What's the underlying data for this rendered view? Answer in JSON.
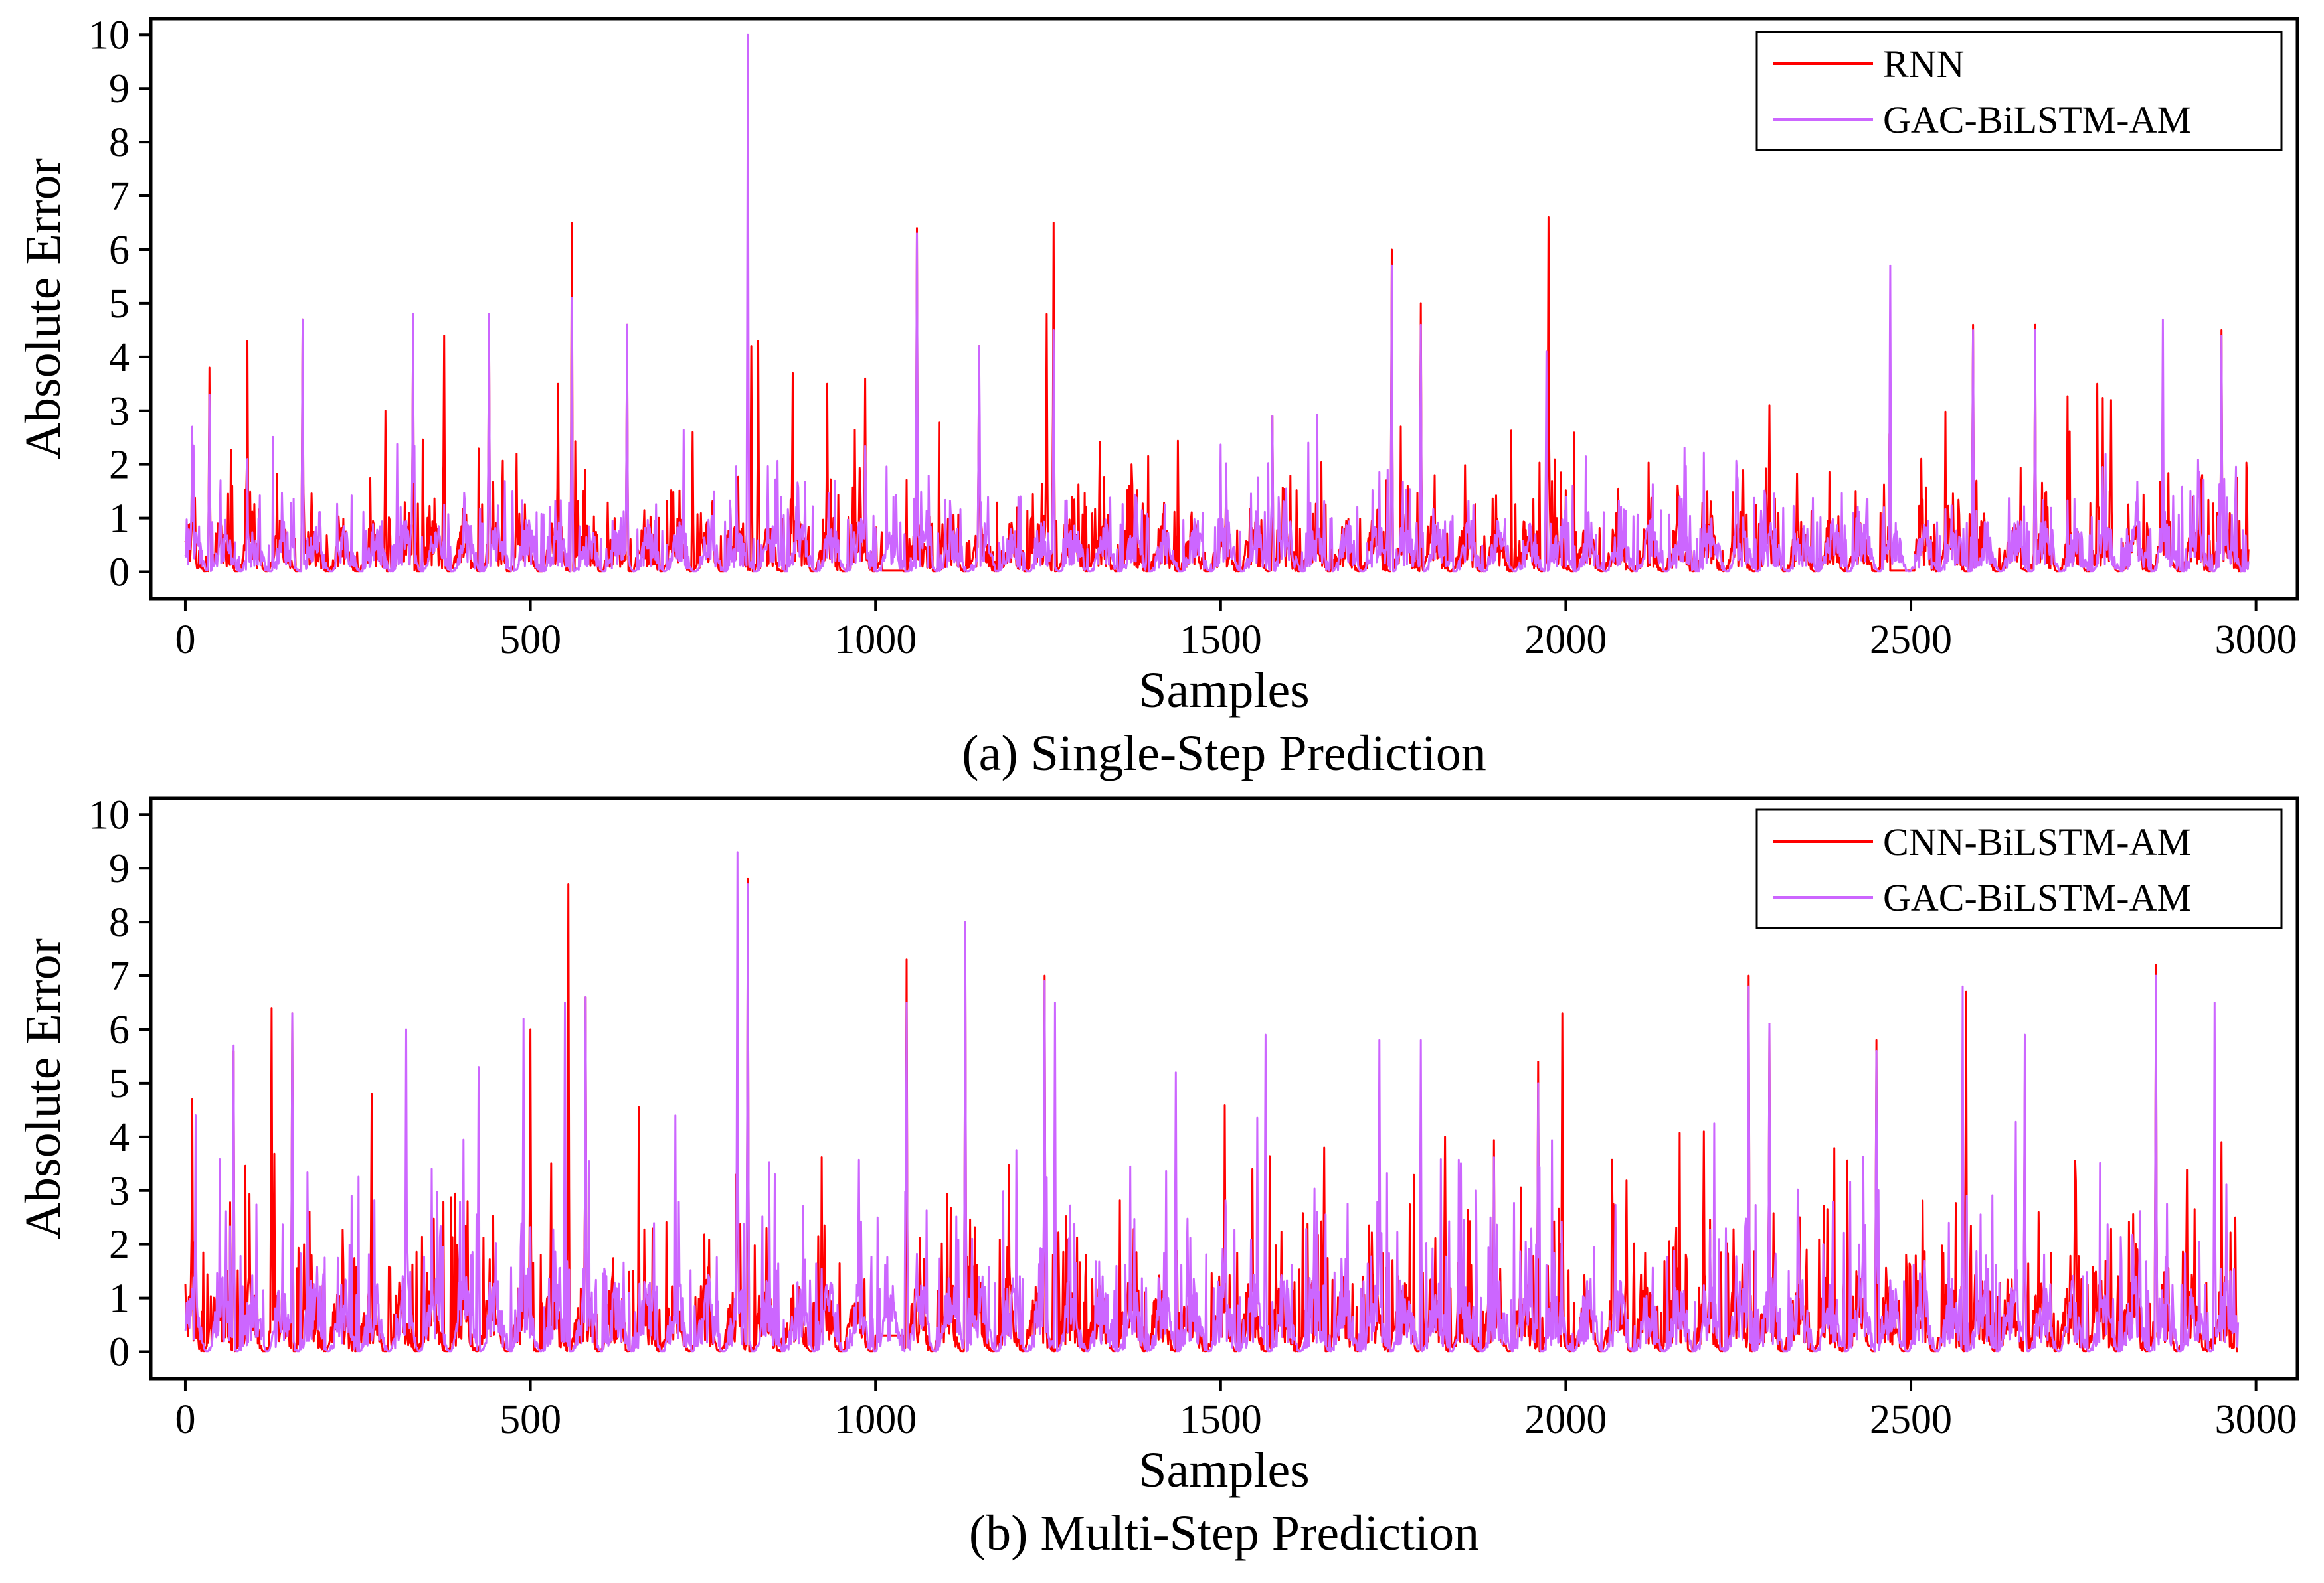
{
  "chart_data": [
    {
      "type": "line",
      "caption": "(a) Single-Step Prediction",
      "xlabel": "Samples",
      "ylabel": "Absolute Error",
      "xlim": [
        -50,
        3060
      ],
      "ylim": [
        -0.5,
        10.3
      ],
      "xticks": [
        0,
        500,
        1000,
        1500,
        2000,
        2500,
        3000
      ],
      "yticks": [
        0,
        1,
        2,
        3,
        4,
        5,
        6,
        7,
        8,
        9,
        10
      ],
      "grid": false,
      "legend_position": "top-right",
      "n_samples": 2990,
      "series": [
        {
          "name": "RNN",
          "color": "#ff0000",
          "baseline": 0.7,
          "noise_amp": 1.3,
          "peaks": [
            [
              10,
              2.6
            ],
            [
              35,
              3.8
            ],
            [
              90,
              4.3
            ],
            [
              170,
              4.7
            ],
            [
              290,
              3.0
            ],
            [
              330,
              4.8
            ],
            [
              375,
              4.4
            ],
            [
              440,
              4.8
            ],
            [
              480,
              2.2
            ],
            [
              540,
              3.5
            ],
            [
              560,
              6.5
            ],
            [
              640,
              4.6
            ],
            [
              735,
              2.6
            ],
            [
              820,
              4.2
            ],
            [
              830,
              4.3
            ],
            [
              880,
              3.7
            ],
            [
              930,
              3.5
            ],
            [
              985,
              3.6
            ],
            [
              1060,
              6.4
            ],
            [
              1150,
              4.2
            ],
            [
              1248,
              4.8
            ],
            [
              1258,
              6.5
            ],
            [
              1575,
              2.9
            ],
            [
              1748,
              6.0
            ],
            [
              1790,
              5.0
            ],
            [
              1975,
              6.6
            ],
            [
              2295,
              3.1
            ],
            [
              2470,
              5.7
            ],
            [
              2590,
              4.6
            ],
            [
              2680,
              4.6
            ],
            [
              2770,
              3.5
            ],
            [
              2790,
              3.2
            ],
            [
              2950,
              4.5
            ]
          ],
          "flat_segments": [
            [
              1010,
              1040,
              0.02
            ],
            [
              2470,
              2505,
              0.02
            ]
          ]
        },
        {
          "name": "GAC-BiLSTM-AM",
          "color": "#cc66ff",
          "baseline": 0.7,
          "noise_amp": 1.2,
          "peaks": [
            [
              10,
              2.7
            ],
            [
              35,
              3.3
            ],
            [
              90,
              2.1
            ],
            [
              170,
              4.7
            ],
            [
              330,
              4.8
            ],
            [
              440,
              4.8
            ],
            [
              560,
              5.1
            ],
            [
              640,
              4.6
            ],
            [
              815,
              10.0
            ],
            [
              1060,
              6.3
            ],
            [
              1150,
              4.2
            ],
            [
              1258,
              4.5
            ],
            [
              1575,
              2.9
            ],
            [
              1748,
              5.7
            ],
            [
              1790,
              4.6
            ],
            [
              1972,
              4.1
            ],
            [
              2470,
              5.7
            ],
            [
              2590,
              4.5
            ],
            [
              2680,
              4.5
            ],
            [
              2865,
              4.7
            ],
            [
              2950,
              4.4
            ]
          ],
          "flat_segments": []
        }
      ]
    },
    {
      "type": "line",
      "caption": "(b) Multi-Step Prediction",
      "xlabel": "Samples",
      "ylabel": "Absolute Error",
      "xlim": [
        -50,
        3060
      ],
      "ylim": [
        -0.5,
        10.3
      ],
      "xticks": [
        0,
        500,
        1000,
        1500,
        2000,
        2500,
        3000
      ],
      "yticks": [
        0,
        1,
        2,
        3,
        4,
        5,
        6,
        7,
        8,
        9,
        10
      ],
      "grid": false,
      "legend_position": "top-right",
      "n_samples": 2975,
      "series": [
        {
          "name": "CNN-BiLSTM-AM",
          "color": "#ff0000",
          "baseline": 1.0,
          "noise_amp": 1.9,
          "peaks": [
            [
              10,
              4.7
            ],
            [
              70,
              5.6
            ],
            [
              125,
              6.4
            ],
            [
              155,
              6.3
            ],
            [
              270,
              4.8
            ],
            [
              500,
              6.0
            ],
            [
              555,
              8.7
            ],
            [
              580,
              6.6
            ],
            [
              800,
              5.6
            ],
            [
              815,
              8.8
            ],
            [
              1045,
              7.3
            ],
            [
              1130,
              7.9
            ],
            [
              1245,
              7.0
            ],
            [
              1650,
              3.8
            ],
            [
              1825,
              4.0
            ],
            [
              1960,
              5.4
            ],
            [
              1995,
              6.3
            ],
            [
              2200,
              4.1
            ],
            [
              2265,
              7.0
            ],
            [
              2295,
              6.1
            ],
            [
              2450,
              5.8
            ],
            [
              2580,
              6.7
            ],
            [
              2665,
              5.1
            ],
            [
              2855,
              7.2
            ],
            [
              2950,
              3.9
            ],
            [
              2970,
              2.5
            ]
          ],
          "flat_segments": [
            [
              1000,
              1040,
              0.3
            ]
          ]
        },
        {
          "name": "GAC-BiLSTM-AM",
          "color": "#cc66ff",
          "baseline": 1.0,
          "noise_amp": 1.8,
          "peaks": [
            [
              15,
              4.4
            ],
            [
              70,
              5.7
            ],
            [
              155,
              6.3
            ],
            [
              320,
              6.0
            ],
            [
              425,
              5.3
            ],
            [
              490,
              6.2
            ],
            [
              550,
              6.5
            ],
            [
              580,
              6.6
            ],
            [
              800,
              9.3
            ],
            [
              815,
              8.7
            ],
            [
              1045,
              6.5
            ],
            [
              1130,
              8.0
            ],
            [
              1245,
              6.9
            ],
            [
              1260,
              6.5
            ],
            [
              1435,
              5.2
            ],
            [
              1565,
              5.9
            ],
            [
              1730,
              5.8
            ],
            [
              1790,
              5.8
            ],
            [
              1960,
              5.0
            ],
            [
              2265,
              6.8
            ],
            [
              2295,
              6.1
            ],
            [
              2450,
              5.6
            ],
            [
              2575,
              6.8
            ],
            [
              2665,
              5.9
            ],
            [
              2855,
              7.0
            ],
            [
              2940,
              6.5
            ]
          ],
          "flat_segments": []
        }
      ]
    }
  ]
}
